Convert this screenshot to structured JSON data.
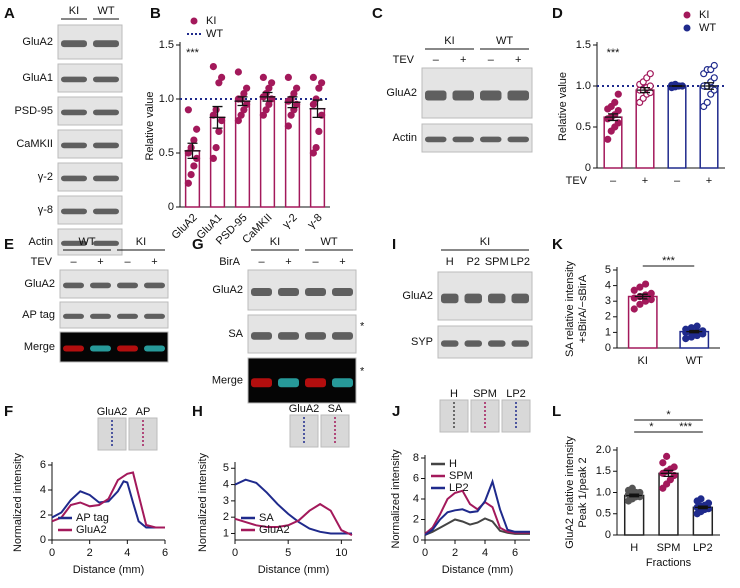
{
  "blots": [
    {
      "panel": "A",
      "groups": [
        "KI",
        "WT"
      ],
      "rows": [
        {
          "name": "GluA2"
        },
        {
          "name": "GluA1"
        },
        {
          "name": "PSD-95"
        },
        {
          "name": "CaMKII"
        },
        {
          "name": "γ-2"
        },
        {
          "name": "γ-8"
        },
        {
          "name": "Actin"
        }
      ]
    },
    {
      "panel": "C",
      "groups": [
        "KI",
        "WT"
      ],
      "condition": {
        "name": "TEV",
        "levels": [
          "–",
          "+",
          "–",
          "+"
        ]
      },
      "rows": [
        {
          "name": "GluA2"
        },
        {
          "name": "Actin"
        }
      ]
    },
    {
      "panel": "E",
      "groups": [
        "WT",
        "KI"
      ],
      "condition": {
        "name": "TEV",
        "levels": [
          "–",
          "+",
          "–",
          "+"
        ]
      },
      "rows": [
        {
          "name": "GluA2"
        },
        {
          "name": "AP tag"
        },
        {
          "name": "Merge"
        }
      ]
    },
    {
      "panel": "G",
      "groups": [
        "KI",
        "WT"
      ],
      "condition": {
        "name": "BirA",
        "levels": [
          "–",
          "+",
          "–",
          "+"
        ]
      },
      "rows": [
        {
          "name": "GluA2"
        },
        {
          "name": "SA",
          "mark": "*"
        },
        {
          "name": "Merge",
          "mark": "*"
        }
      ]
    },
    {
      "panel": "I",
      "groups": [
        "KI"
      ],
      "lanes": [
        "H",
        "P2",
        "SPM",
        "LP2"
      ],
      "rows": [
        {
          "name": "GluA2"
        },
        {
          "name": "SYP"
        }
      ]
    }
  ],
  "chart_data": [
    {
      "panel": "B",
      "type": "bar",
      "categories": [
        "GluA2",
        "GluA1",
        "PSD-95",
        "CaMKII",
        "γ-2",
        "γ-8"
      ],
      "xtick_rotation": 45,
      "ylabel": "Relative value",
      "ylim": [
        0,
        1.5
      ],
      "yticks": [
        0,
        0.5,
        {
          "value": 1,
          "label": "1.0"
        },
        1.5
      ],
      "legend": "upper left",
      "series": [
        {
          "name": "KI",
          "color": "#a3195b",
          "values": [
            0.52,
            0.83,
            0.98,
            1.02,
            0.97,
            0.91
          ],
          "errors": [
            0.07,
            0.1,
            0.04,
            0.04,
            0.05,
            0.08
          ],
          "points": [
            [
              0.22,
              0.3,
              0.38,
              0.45,
              0.5,
              0.55,
              0.62,
              0.72,
              0.9
            ],
            [
              0.45,
              0.55,
              0.7,
              0.8,
              0.85,
              0.9,
              1.15,
              1.2,
              1.3
            ],
            [
              0.8,
              0.85,
              0.9,
              0.95,
              1.0,
              1.0,
              1.05,
              1.1,
              1.25
            ],
            [
              0.85,
              0.9,
              0.95,
              1.0,
              1.02,
              1.05,
              1.1,
              1.15,
              1.2
            ],
            [
              0.75,
              0.85,
              0.9,
              0.95,
              0.98,
              1.0,
              1.05,
              1.1,
              1.2
            ],
            [
              0.5,
              0.55,
              0.7,
              0.85,
              0.95,
              1.0,
              1.1,
              1.15,
              1.2
            ]
          ]
        }
      ],
      "reference_line": {
        "name": "WT",
        "value": 1,
        "color": "#1f2a8c"
      },
      "annotations": [
        {
          "text": "***"
        }
      ]
    },
    {
      "panel": "D",
      "type": "bar",
      "categories": [
        "–",
        "+",
        "–",
        "+"
      ],
      "xlabel": "TEV",
      "ylabel": "Relative value",
      "ylim": [
        0,
        1.5
      ],
      "yticks": [
        0,
        0.5,
        {
          "value": 1,
          "label": "1.0"
        },
        1.5
      ],
      "legend": "upper right",
      "open_markers": [
        false,
        true,
        false,
        true
      ],
      "series": [
        {
          "name": "KI",
          "color": "#a3195b",
          "values": [
            0.62,
            0.95,
            null,
            null
          ],
          "errors": [
            0.04,
            0.03,
            null,
            null
          ],
          "points": [
            [
              0.35,
              0.45,
              0.5,
              0.55,
              0.6,
              0.62,
              0.65,
              0.7,
              0.72,
              0.75,
              0.8,
              0.9
            ],
            [
              0.8,
              0.85,
              0.9,
              0.92,
              0.95,
              0.95,
              0.98,
              1.0,
              1.02,
              1.05,
              1.1,
              1.15
            ],
            null,
            null
          ]
        },
        {
          "name": "WT",
          "color": "#1f2a8c",
          "values": [
            null,
            null,
            1.0,
            1.0
          ],
          "errors": [
            null,
            null,
            0.005,
            0.04
          ],
          "points": [
            null,
            null,
            [
              0.98,
              0.99,
              1.0,
              1.0,
              1.0,
              1.0,
              1.0,
              1.0,
              1.01,
              1.02
            ],
            [
              0.75,
              0.8,
              0.9,
              0.95,
              1.0,
              1.0,
              1.05,
              1.1,
              1.15,
              1.2,
              1.2,
              1.25
            ]
          ]
        }
      ],
      "reference_line": {
        "value": 1,
        "color": "#1f2a8c"
      },
      "annotations": [
        {
          "text": "***"
        }
      ]
    },
    {
      "panel": "F",
      "type": "line",
      "xlabel": "Distance (mm)",
      "ylabel": "Normalized intensity",
      "xlim": [
        0,
        6
      ],
      "xticks": [
        0,
        2,
        4,
        6
      ],
      "ylim": [
        0,
        6
      ],
      "yticks": [
        0,
        2,
        4,
        6
      ],
      "legend": "lower left",
      "inset_labels": [
        "GluA2",
        "AP"
      ],
      "series": [
        {
          "name": "AP tag",
          "color": "#1f2a8c",
          "x": [
            0,
            0.5,
            1,
            1.5,
            2,
            2.5,
            3,
            3.5,
            3.8,
            4,
            4.3,
            4.6,
            5,
            5.5,
            6
          ],
          "values": [
            1.8,
            2.2,
            3.2,
            3.9,
            3.6,
            3.0,
            3.1,
            3.9,
            4.7,
            4.6,
            3.0,
            1.5,
            1.0,
            1.0,
            1.0
          ]
        },
        {
          "name": "GluA2",
          "color": "#a3195b",
          "x": [
            0,
            0.5,
            1,
            1.5,
            2,
            2.5,
            3,
            3.5,
            4,
            4.3,
            4.6,
            5,
            5.5,
            6
          ],
          "values": [
            1.5,
            1.8,
            2.8,
            3.0,
            2.7,
            2.8,
            3.3,
            4.8,
            5.3,
            5.4,
            3.6,
            1.2,
            1.0,
            1.0
          ]
        }
      ]
    },
    {
      "panel": "H",
      "type": "line",
      "xlabel": "Distance (mm)",
      "ylabel": "Normalized intensity",
      "xlim": [
        0,
        11
      ],
      "xticks": [
        0,
        5,
        10
      ],
      "ylim": [
        0.6,
        5.2
      ],
      "yticks": [
        1,
        2,
        3,
        4,
        5
      ],
      "legend": "lower left",
      "inset_labels": [
        "GluA2",
        "SA"
      ],
      "series": [
        {
          "name": "SA",
          "color": "#1f2a8c",
          "x": [
            0,
            1,
            2,
            3,
            4,
            5,
            6,
            7,
            8,
            9,
            10,
            11
          ],
          "values": [
            4.0,
            4.3,
            4.1,
            3.5,
            2.8,
            2.2,
            1.7,
            1.3,
            1.1,
            1.0,
            1.0,
            1.0
          ]
        },
        {
          "name": "GluA2",
          "color": "#a3195b",
          "x": [
            0,
            1,
            2,
            3,
            4,
            5,
            6,
            7,
            8,
            9,
            10,
            11
          ],
          "values": [
            1.9,
            1.7,
            1.5,
            1.4,
            1.4,
            1.5,
            1.8,
            2.4,
            2.8,
            2.4,
            1.2,
            0.9
          ]
        }
      ]
    },
    {
      "panel": "J",
      "type": "line",
      "xlabel": "Distance (mm)",
      "ylabel": "Normalized intensity",
      "xlim": [
        0,
        7
      ],
      "xticks": [
        0,
        2,
        4,
        6
      ],
      "ylim": [
        0,
        8
      ],
      "yticks": [
        0,
        2,
        4,
        6,
        8
      ],
      "legend": "upper left",
      "inset_labels": [
        "H",
        "SPM",
        "LP2"
      ],
      "series": [
        {
          "name": "H",
          "color": "#444444",
          "x": [
            0,
            0.5,
            1,
            1.5,
            2,
            2.5,
            3,
            3.5,
            4,
            4.5,
            5,
            5.5,
            6,
            6.5,
            7
          ],
          "values": [
            0.5,
            0.8,
            1.2,
            1.6,
            2.0,
            1.8,
            1.5,
            1.7,
            2.1,
            1.8,
            0.9,
            0.7,
            0.6,
            0.6,
            0.6
          ]
        },
        {
          "name": "SPM",
          "color": "#a3195b",
          "x": [
            0,
            0.5,
            1,
            1.5,
            2,
            2.5,
            3,
            3.5,
            4,
            4.5,
            5,
            5.5,
            6,
            6.5,
            7
          ],
          "values": [
            0.6,
            1.2,
            2.5,
            4.0,
            4.6,
            4.8,
            3.5,
            3.0,
            3.7,
            3.2,
            1.2,
            0.8,
            0.7,
            0.7,
            0.7
          ]
        },
        {
          "name": "LP2",
          "color": "#1f2a8c",
          "x": [
            0,
            0.5,
            1,
            1.5,
            2,
            2.5,
            3,
            3.5,
            4,
            4.5,
            5,
            5.5,
            6,
            6.5,
            7
          ],
          "values": [
            0.5,
            1.0,
            2.0,
            2.7,
            2.9,
            3.0,
            2.7,
            2.8,
            3.8,
            5.7,
            3.0,
            1.0,
            0.8,
            0.8,
            0.8
          ]
        }
      ]
    },
    {
      "panel": "K",
      "type": "bar",
      "categories": [
        "KI",
        "WT"
      ],
      "ylabel": [
        "SA relative intensity",
        "+sBirA/−sBirA"
      ],
      "ylim": [
        0,
        5
      ],
      "yticks": [
        0,
        1,
        2,
        3,
        4,
        5
      ],
      "series": [
        {
          "colors": [
            "#a3195b",
            "#1f2a8c"
          ],
          "values": [
            3.3,
            1.05
          ],
          "errors": [
            0.15,
            0.07
          ],
          "points": [
            [
              2.5,
              2.8,
              3.0,
              3.1,
              3.2,
              3.3,
              3.4,
              3.5,
              3.7,
              3.9,
              4.1
            ],
            [
              0.6,
              0.7,
              0.8,
              0.9,
              1.0,
              1.0,
              1.05,
              1.1,
              1.2,
              1.3,
              1.4
            ]
          ]
        }
      ],
      "annotations": [
        {
          "text": "***",
          "bracket": [
            "KI",
            "WT"
          ]
        }
      ]
    },
    {
      "panel": "L",
      "type": "bar",
      "categories": [
        "H",
        "SPM",
        "LP2"
      ],
      "xlabel": "Fractions",
      "ylabel": [
        "GluA2 relative intensity",
        "Peak 1/peak 2"
      ],
      "ylim": [
        0,
        2
      ],
      "yticks": [
        0,
        0.5,
        {
          "value": 1,
          "label": "1.0"
        },
        1.5,
        {
          "value": 2,
          "label": "2.0"
        }
      ],
      "series": [
        {
          "edge_color": "#222222",
          "colors": [
            "#555555",
            "#a3195b",
            "#1f2a8c"
          ],
          "values": [
            0.93,
            1.45,
            0.65
          ],
          "errors": [
            0.03,
            0.07,
            0.03
          ],
          "points": [
            [
              0.8,
              0.85,
              0.9,
              0.9,
              0.95,
              0.95,
              1.0,
              1.0,
              1.05,
              1.1
            ],
            [
              1.1,
              1.2,
              1.3,
              1.4,
              1.45,
              1.5,
              1.55,
              1.6,
              1.7,
              1.85
            ],
            [
              0.5,
              0.55,
              0.6,
              0.62,
              0.65,
              0.68,
              0.7,
              0.75,
              0.8,
              0.85
            ]
          ]
        }
      ],
      "annotations": [
        {
          "text": "*",
          "bracket": [
            "H",
            "LP2"
          ]
        },
        {
          "text": "*",
          "bracket": [
            "H",
            "SPM"
          ]
        },
        {
          "text": "***",
          "bracket": [
            "SPM",
            "LP2"
          ]
        }
      ]
    }
  ]
}
